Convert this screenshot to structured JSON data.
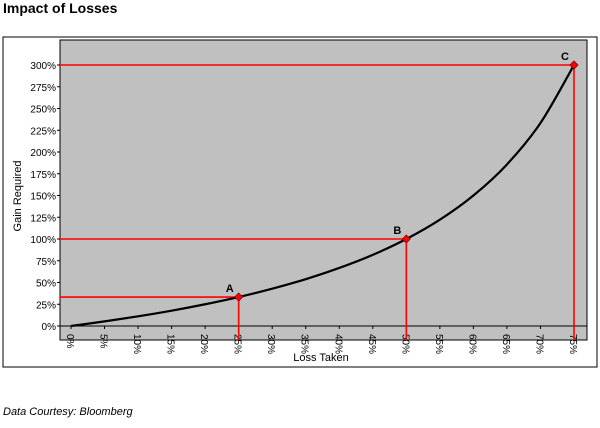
{
  "page": {
    "title": "Impact of Losses",
    "footnote": "Data Courtesy: Bloomberg"
  },
  "chart_data": {
    "type": "line",
    "title": "Impact of Losses",
    "xlabel": "Loss Taken",
    "ylabel": "Gain Required",
    "xlim": [
      0,
      0.75
    ],
    "ylim": [
      0,
      3.0
    ],
    "x_ticks": [
      "0%",
      "5%",
      "10%",
      "15%",
      "20%",
      "25%",
      "30%",
      "35%",
      "40%",
      "45%",
      "50%",
      "55%",
      "60%",
      "65%",
      "70%",
      "75%"
    ],
    "y_ticks": [
      "0%",
      "25%",
      "50%",
      "75%",
      "100%",
      "125%",
      "150%",
      "175%",
      "200%",
      "225%",
      "250%",
      "275%",
      "300%"
    ],
    "grid": false,
    "legend": "none",
    "series": [
      {
        "color": "#000000",
        "x": [
          0,
          0.05,
          0.1,
          0.15,
          0.2,
          0.25,
          0.3,
          0.35,
          0.4,
          0.45,
          0.5,
          0.55,
          0.6,
          0.65,
          0.7,
          0.75
        ],
        "y": [
          0,
          0.053,
          0.111,
          0.176,
          0.25,
          0.333,
          0.429,
          0.538,
          0.667,
          0.818,
          1.0,
          1.222,
          1.5,
          1.857,
          2.333,
          3.0
        ]
      }
    ],
    "annotations": [
      {
        "label": "A",
        "x": 0.25,
        "y": 0.333
      },
      {
        "label": "B",
        "x": 0.5,
        "y": 1.0
      },
      {
        "label": "C",
        "x": 0.75,
        "y": 3.0
      }
    ],
    "colors": {
      "plot_bg": "#c0c0c0",
      "reference_lines": "#ff0000",
      "curve": "#000000"
    }
  }
}
